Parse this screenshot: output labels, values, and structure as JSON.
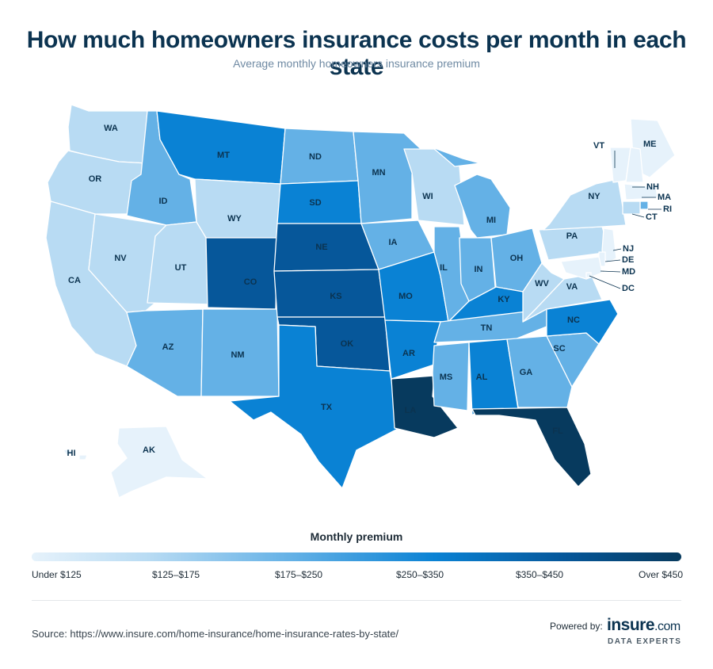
{
  "header": {
    "title": "How much homeowners insurance costs per month in each state",
    "subtitle": "Average monthly homeowners insurance premium"
  },
  "legend": {
    "title": "Monthly premium",
    "bins": [
      {
        "label": "Under $125",
        "color": "#e6f2fb"
      },
      {
        "label": "$125–$175",
        "color": "#b8dbf3"
      },
      {
        "label": "$175–$250",
        "color": "#64b1e6"
      },
      {
        "label": "$250–$350",
        "color": "#0a82d4"
      },
      {
        "label": "$350–$450",
        "color": "#06579a"
      },
      {
        "label": "Over $450",
        "color": "#073a5e"
      }
    ]
  },
  "map_data": {
    "states": [
      {
        "code": "WA",
        "bin": 1
      },
      {
        "code": "OR",
        "bin": 1
      },
      {
        "code": "CA",
        "bin": 1
      },
      {
        "code": "NV",
        "bin": 1
      },
      {
        "code": "ID",
        "bin": 2
      },
      {
        "code": "MT",
        "bin": 3
      },
      {
        "code": "WY",
        "bin": 1
      },
      {
        "code": "UT",
        "bin": 1
      },
      {
        "code": "AZ",
        "bin": 2
      },
      {
        "code": "CO",
        "bin": 4
      },
      {
        "code": "NM",
        "bin": 2
      },
      {
        "code": "ND",
        "bin": 2
      },
      {
        "code": "SD",
        "bin": 3
      },
      {
        "code": "NE",
        "bin": 4
      },
      {
        "code": "KS",
        "bin": 4
      },
      {
        "code": "OK",
        "bin": 4
      },
      {
        "code": "TX",
        "bin": 3
      },
      {
        "code": "MN",
        "bin": 2
      },
      {
        "code": "IA",
        "bin": 2
      },
      {
        "code": "MO",
        "bin": 3
      },
      {
        "code": "AR",
        "bin": 3
      },
      {
        "code": "LA",
        "bin": 5
      },
      {
        "code": "WI",
        "bin": 1
      },
      {
        "code": "IL",
        "bin": 2
      },
      {
        "code": "MI",
        "bin": 2
      },
      {
        "code": "IN",
        "bin": 2
      },
      {
        "code": "OH",
        "bin": 2
      },
      {
        "code": "KY",
        "bin": 3
      },
      {
        "code": "TN",
        "bin": 2
      },
      {
        "code": "MS",
        "bin": 2
      },
      {
        "code": "AL",
        "bin": 3
      },
      {
        "code": "GA",
        "bin": 2
      },
      {
        "code": "FL",
        "bin": 5
      },
      {
        "code": "SC",
        "bin": 2
      },
      {
        "code": "NC",
        "bin": 3
      },
      {
        "code": "VA",
        "bin": 1
      },
      {
        "code": "WV",
        "bin": 1
      },
      {
        "code": "PA",
        "bin": 1
      },
      {
        "code": "NY",
        "bin": 1
      },
      {
        "code": "ME",
        "bin": 0
      },
      {
        "code": "VT",
        "bin": 0
      },
      {
        "code": "NH",
        "bin": 0
      },
      {
        "code": "MA",
        "bin": 0
      },
      {
        "code": "RI",
        "bin": 2
      },
      {
        "code": "CT",
        "bin": 1
      },
      {
        "code": "NJ",
        "bin": 0
      },
      {
        "code": "DE",
        "bin": 0
      },
      {
        "code": "MD",
        "bin": 0
      },
      {
        "code": "DC",
        "bin": 0
      },
      {
        "code": "AK",
        "bin": 0
      },
      {
        "code": "HI",
        "bin": 0
      }
    ]
  },
  "footer": {
    "source": "Source: https://www.insure.com/home-insurance/home-insurance-rates-by-state/",
    "powered_by": "Powered by:",
    "brand_name": "insure",
    "brand_suffix": ".com",
    "brand_tagline": "DATA EXPERTS"
  }
}
